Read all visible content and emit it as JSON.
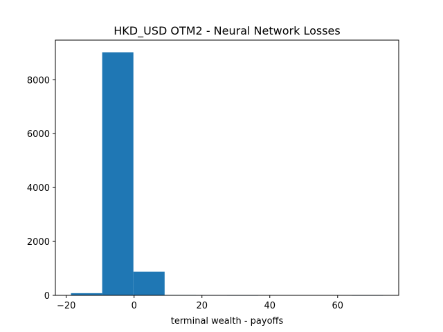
{
  "chart_data": {
    "type": "bar",
    "subtype": "histogram",
    "title": "HKD_USD OTM2 - Neural Network Losses",
    "xlabel": "terminal wealth - payoffs",
    "ylabel": "",
    "bin_edges": [
      -18.6,
      -9.4,
      -0.2,
      9.0,
      18.2,
      27.4,
      36.6,
      45.8,
      55.0,
      64.2,
      73.4
    ],
    "counts": [
      80,
      9020,
      880,
      15,
      2,
      1,
      0,
      0,
      0,
      1
    ],
    "xlim": [
      -23.2,
      78.0
    ],
    "ylim": [
      0,
      9471
    ],
    "xticks": [
      -20,
      0,
      20,
      40,
      60
    ],
    "xtick_labels": [
      "−20",
      "0",
      "20",
      "40",
      "60"
    ],
    "yticks": [
      0,
      2000,
      4000,
      6000,
      8000
    ],
    "ytick_labels": [
      "0",
      "2000",
      "4000",
      "6000",
      "8000"
    ],
    "bar_color": "#1f77b4",
    "grid": false,
    "legend": "none"
  }
}
